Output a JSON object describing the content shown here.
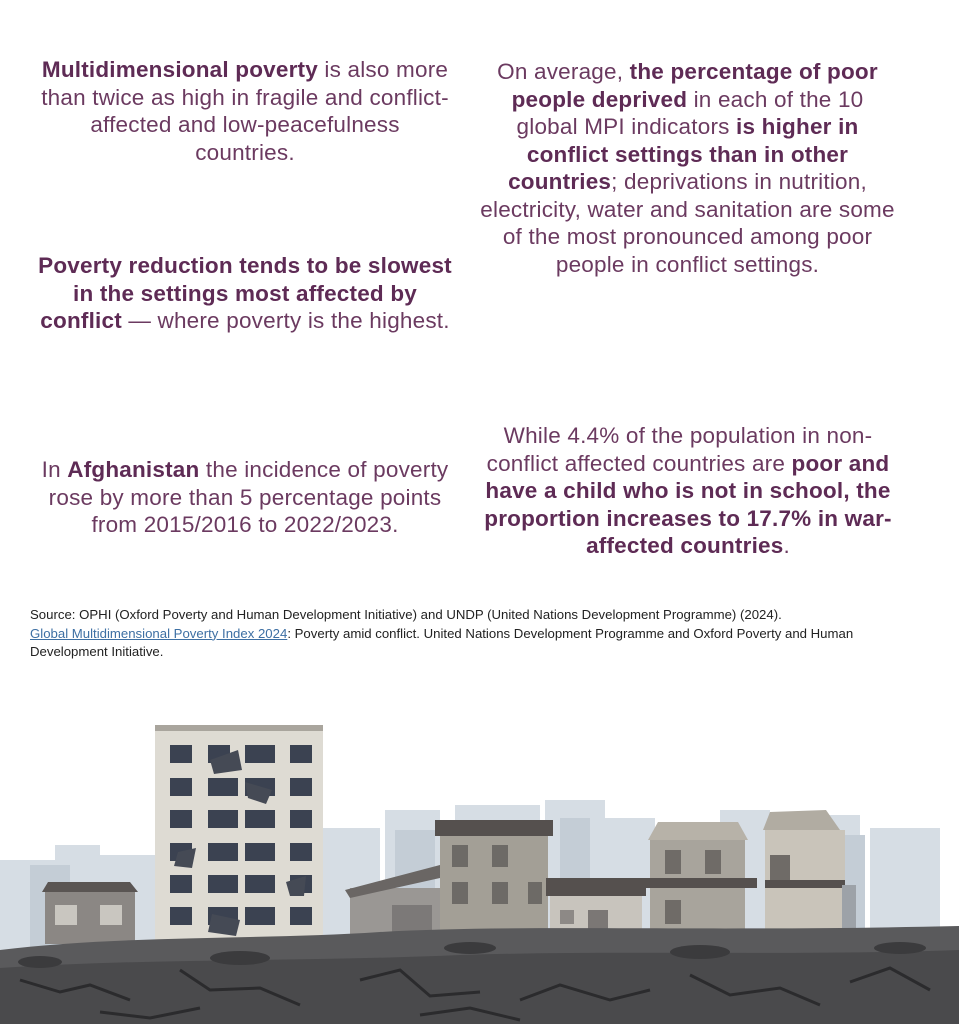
{
  "facts": [
    {
      "parts": [
        {
          "t": "Multidimensional poverty",
          "b": true
        },
        {
          "t": " is also more than twice as high in fragile and conflict-affected and low-peacefulness countries.",
          "b": false
        }
      ]
    },
    {
      "parts": [
        {
          "t": "On average, ",
          "b": false
        },
        {
          "t": "the percentage of poor people deprived",
          "b": true
        },
        {
          "t": " in each of the 10 global MPI indicators ",
          "b": false
        },
        {
          "t": "is higher in conflict settings than in other countries",
          "b": true
        },
        {
          "t": "; deprivations in nutrition, electricity, water and sanitation are some of the most pronounced among poor people in conflict settings.",
          "b": false
        }
      ]
    },
    {
      "parts": [
        {
          "t": "Poverty reduction tends to be slowest in the settings most affected by conflict",
          "b": true
        },
        {
          "t": " — where poverty is the highest.",
          "b": false
        }
      ]
    },
    {
      "parts": [
        {
          "t": "In ",
          "b": false
        },
        {
          "t": "Afghanistan",
          "b": true
        },
        {
          "t": " the incidence of poverty rose by more than 5 percentage points from 2015/2016 to 2022/2023.",
          "b": false
        }
      ]
    },
    {
      "parts": [
        {
          "t": "While 4.4% of the population in non-conflict affected countries are ",
          "b": false
        },
        {
          "t": "poor and have a child who is not in school, the proportion increases to 17.7% in war-affected countries",
          "b": true
        },
        {
          "t": ".",
          "b": false
        }
      ]
    }
  ],
  "source": {
    "prefix": "Source: OPHI (Oxford Poverty and Human Development Initiative) and UNDP (United Nations Development Programme) (2024).",
    "link_text": "Global Multidimensional Poverty Index 2024",
    "suffix": ": Poverty amid conflict. United Nations Development Programme and Oxford Poverty and Human Development Initiative."
  },
  "illustration": {
    "icon": "war-damaged-city-illustration",
    "colors": {
      "sky_buildings": "#d3dbe3",
      "tall_building": "#dcdad4",
      "windows": "#3a4150",
      "rubble_ground": "#4e4e50",
      "cracks": "#2a2a2c"
    }
  },
  "colors": {
    "text_purple": "#6b3a60",
    "bold_purple": "#5e2b55",
    "link_blue": "#3d6fa3"
  }
}
